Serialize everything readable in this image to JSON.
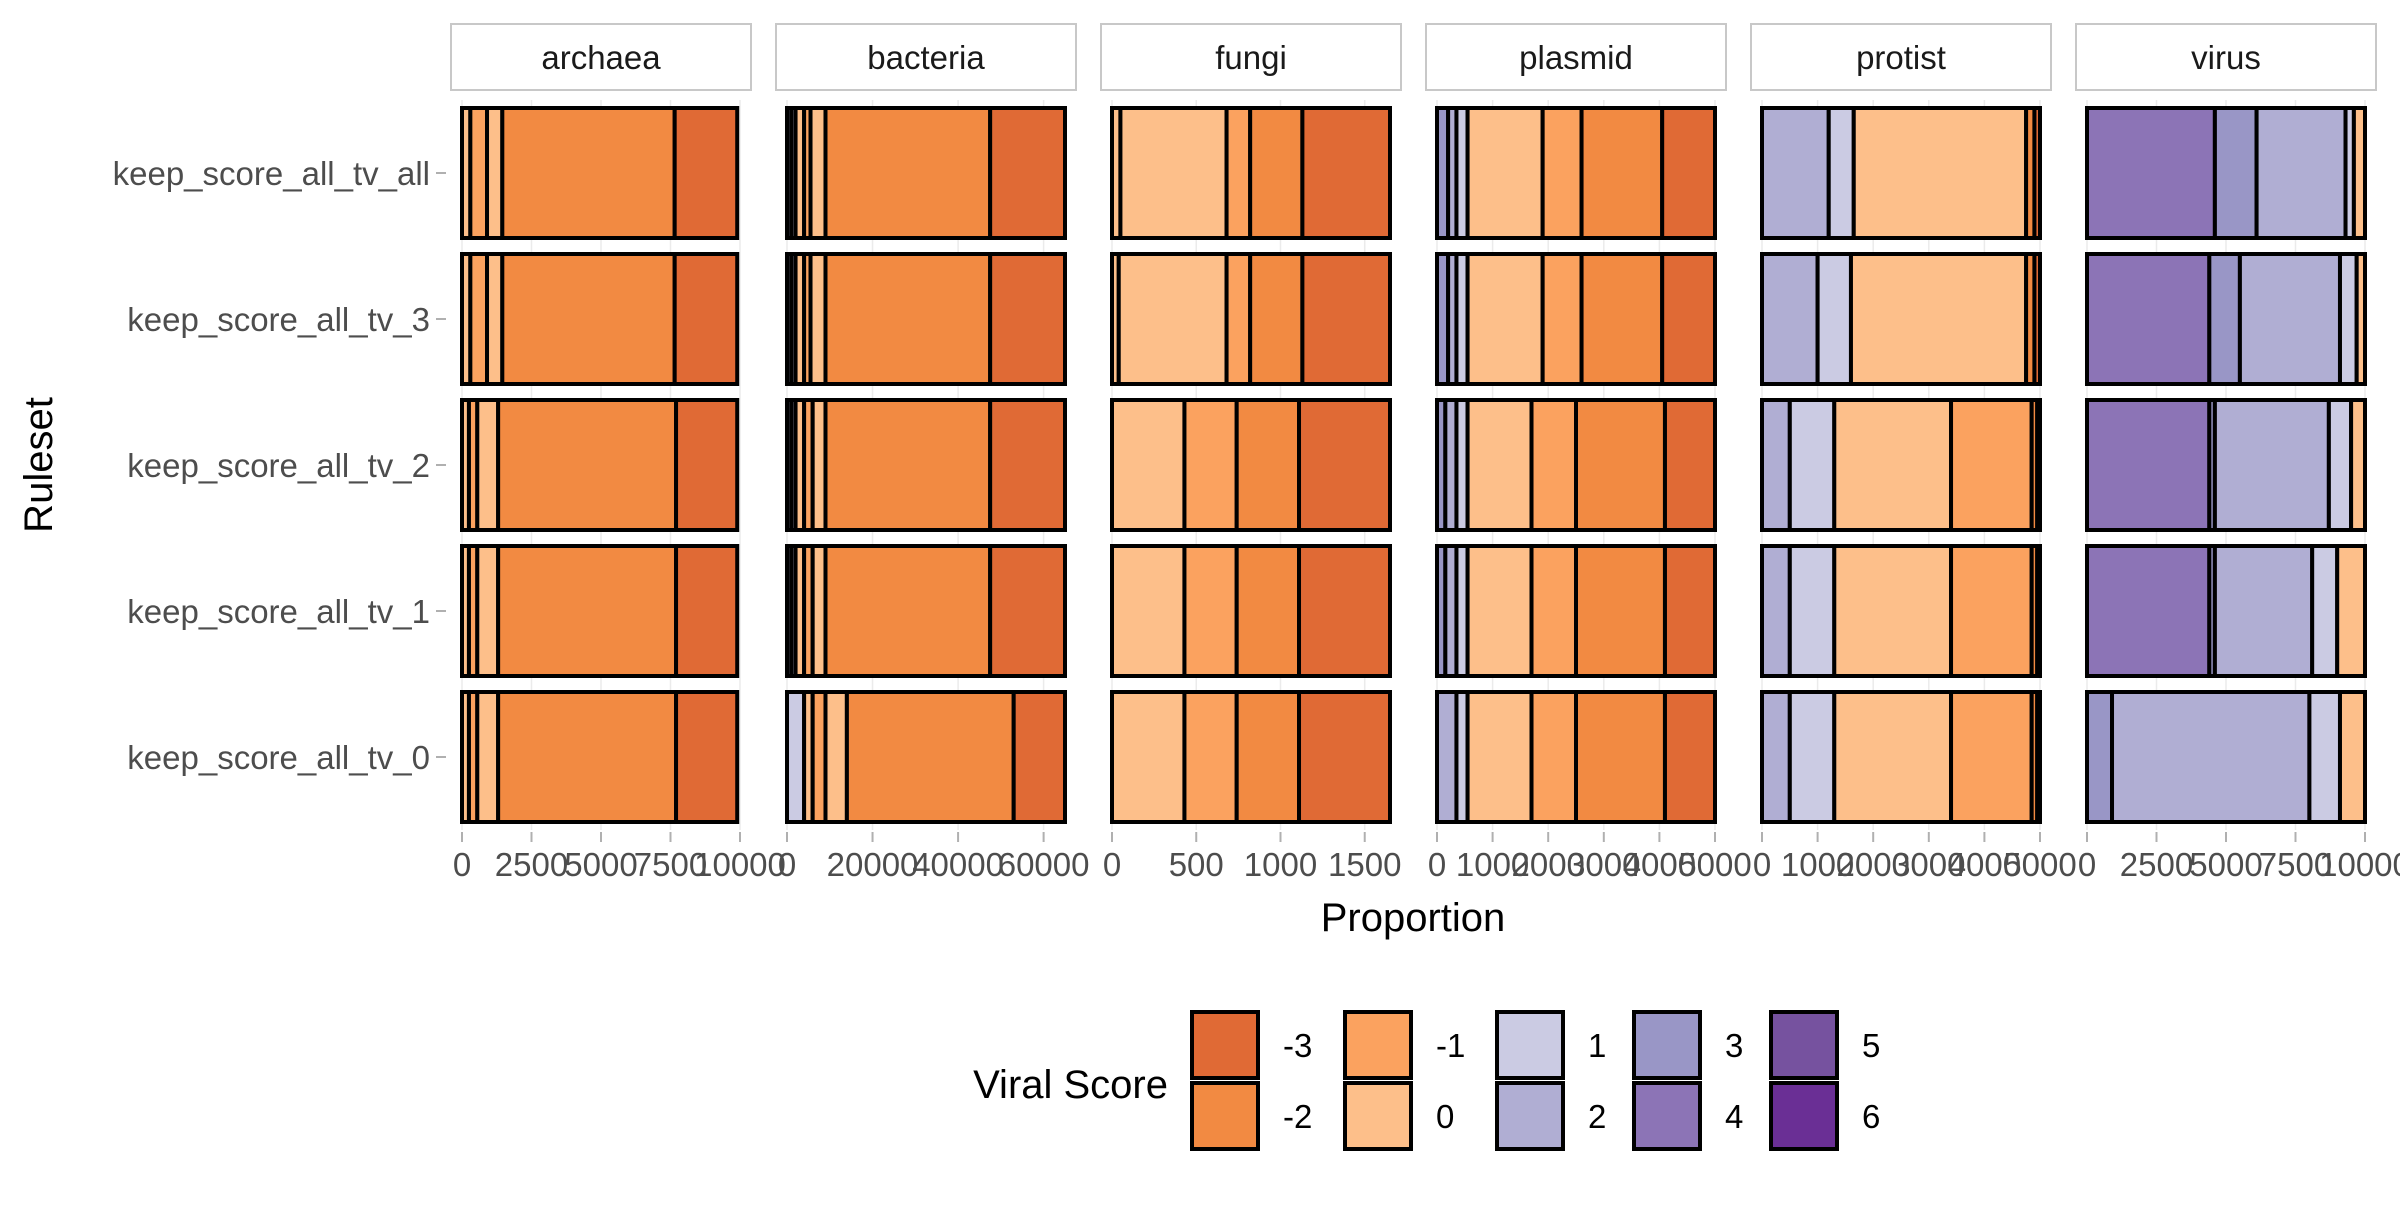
{
  "chart_data": {
    "type": "bar",
    "orientation": "horizontal",
    "stacked": true,
    "xlabel": "Proportion",
    "ylabel": "Ruleset",
    "legend": {
      "title": "Viral Score",
      "position": "bottom",
      "entries": [
        {
          "label": "-3",
          "color": "#E06A35"
        },
        {
          "label": "-2",
          "color": "#F28A42"
        },
        {
          "label": "-1",
          "color": "#FBA25F"
        },
        {
          "label": "0",
          "color": "#FDBF8A"
        },
        {
          "label": "1",
          "color": "#CBCBE3"
        },
        {
          "label": "2",
          "color": "#B0AED3"
        },
        {
          "label": "3",
          "color": "#9996C6"
        },
        {
          "label": "4",
          "color": "#8C74B6"
        },
        {
          "label": "5",
          "color": "#76529F"
        },
        {
          "label": "6",
          "color": "#6A2F95"
        }
      ]
    },
    "rulesets": [
      "keep_score_all_tv_all",
      "keep_score_all_tv_3",
      "keep_score_all_tv_2",
      "keep_score_all_tv_1",
      "keep_score_all_tv_0"
    ],
    "panels": [
      {
        "name": "archaea",
        "xlim": [
          0,
          10000
        ],
        "ticks": [
          "0",
          "2500",
          "5000",
          "7500",
          "10000"
        ],
        "tick_values": [
          0,
          2500,
          5000,
          7500,
          10000
        ],
        "bars": [
          [
            {
              "score": "0",
              "value": 300
            },
            {
              "score": "-1",
              "value": 600
            },
            {
              "score": "0",
              "value": 550
            },
            {
              "score": "-2",
              "value": 6200
            },
            {
              "score": "-3",
              "value": 2250
            }
          ],
          [
            {
              "score": "0",
              "value": 300
            },
            {
              "score": "-1",
              "value": 600
            },
            {
              "score": "0",
              "value": 550
            },
            {
              "score": "-2",
              "value": 6200
            },
            {
              "score": "-3",
              "value": 2250
            }
          ],
          [
            {
              "score": "0",
              "value": 250
            },
            {
              "score": "-1",
              "value": 300
            },
            {
              "score": "0",
              "value": 750
            },
            {
              "score": "-2",
              "value": 6400
            },
            {
              "score": "-3",
              "value": 2200
            }
          ],
          [
            {
              "score": "0",
              "value": 250
            },
            {
              "score": "-1",
              "value": 300
            },
            {
              "score": "0",
              "value": 750
            },
            {
              "score": "-2",
              "value": 6400
            },
            {
              "score": "-3",
              "value": 2200
            }
          ],
          [
            {
              "score": "0",
              "value": 250
            },
            {
              "score": "-1",
              "value": 300
            },
            {
              "score": "0",
              "value": 750
            },
            {
              "score": "-2",
              "value": 6400
            },
            {
              "score": "-3",
              "value": 2200
            }
          ]
        ]
      },
      {
        "name": "bacteria",
        "xlim": [
          0,
          65000
        ],
        "ticks": [
          "0",
          "20000",
          "40000",
          "60000"
        ],
        "tick_values": [
          0,
          20000,
          40000,
          60000
        ],
        "bars": [
          [
            {
              "score": "2",
              "value": 1000
            },
            {
              "score": "1",
              "value": 1000
            },
            {
              "score": "0",
              "value": 2000
            },
            {
              "score": "-1",
              "value": 1500
            },
            {
              "score": "0",
              "value": 3500
            },
            {
              "score": "-2",
              "value": 38500
            },
            {
              "score": "-3",
              "value": 17500
            }
          ],
          [
            {
              "score": "2",
              "value": 1000
            },
            {
              "score": "1",
              "value": 1000
            },
            {
              "score": "0",
              "value": 2000
            },
            {
              "score": "-1",
              "value": 1500
            },
            {
              "score": "0",
              "value": 3500
            },
            {
              "score": "-2",
              "value": 38500
            },
            {
              "score": "-3",
              "value": 17500
            }
          ],
          [
            {
              "score": "2",
              "value": 1000
            },
            {
              "score": "1",
              "value": 1000
            },
            {
              "score": "0",
              "value": 2000
            },
            {
              "score": "-1",
              "value": 2000
            },
            {
              "score": "0",
              "value": 3000
            },
            {
              "score": "-2",
              "value": 38500
            },
            {
              "score": "-3",
              "value": 17500
            }
          ],
          [
            {
              "score": "2",
              "value": 1000
            },
            {
              "score": "1",
              "value": 1000
            },
            {
              "score": "0",
              "value": 2000
            },
            {
              "score": "-1",
              "value": 2000
            },
            {
              "score": "0",
              "value": 3000
            },
            {
              "score": "-2",
              "value": 38500
            },
            {
              "score": "-3",
              "value": 17500
            }
          ],
          [
            {
              "score": "1",
              "value": 4000
            },
            {
              "score": "0",
              "value": 2000
            },
            {
              "score": "-1",
              "value": 3000
            },
            {
              "score": "0",
              "value": 5000
            },
            {
              "score": "-2",
              "value": 39000
            },
            {
              "score": "-3",
              "value": 12000
            }
          ]
        ]
      },
      {
        "name": "fungi",
        "xlim": [
          0,
          1650
        ],
        "ticks": [
          "0",
          "500",
          "1000",
          "1500"
        ],
        "tick_values": [
          0,
          500,
          1000,
          1500
        ],
        "bars": [
          [
            {
              "score": "0",
              "value": 50
            },
            {
              "score": "0",
              "value": 630
            },
            {
              "score": "-1",
              "value": 140
            },
            {
              "score": "-2",
              "value": 310
            },
            {
              "score": "-3",
              "value": 520
            }
          ],
          [
            {
              "score": "0",
              "value": 40
            },
            {
              "score": "0",
              "value": 640
            },
            {
              "score": "-1",
              "value": 140
            },
            {
              "score": "-2",
              "value": 310
            },
            {
              "score": "-3",
              "value": 520
            }
          ],
          [
            {
              "score": "0",
              "value": 430
            },
            {
              "score": "-1",
              "value": 310
            },
            {
              "score": "-2",
              "value": 370
            },
            {
              "score": "-3",
              "value": 540
            }
          ],
          [
            {
              "score": "0",
              "value": 430
            },
            {
              "score": "-1",
              "value": 310
            },
            {
              "score": "-2",
              "value": 370
            },
            {
              "score": "-3",
              "value": 540
            }
          ],
          [
            {
              "score": "0",
              "value": 430
            },
            {
              "score": "-1",
              "value": 310
            },
            {
              "score": "-2",
              "value": 370
            },
            {
              "score": "-3",
              "value": 540
            }
          ]
        ]
      },
      {
        "name": "plasmid",
        "xlim": [
          0,
          5000
        ],
        "ticks": [
          "0",
          "1000",
          "2000",
          "3000",
          "4000",
          "5000"
        ],
        "tick_values": [
          0,
          1000,
          2000,
          3000,
          4000,
          5000
        ],
        "bars": [
          [
            {
              "score": "3",
              "value": 200
            },
            {
              "score": "2",
              "value": 150
            },
            {
              "score": "1",
              "value": 200
            },
            {
              "score": "0",
              "value": 1350
            },
            {
              "score": "-1",
              "value": 700
            },
            {
              "score": "-2",
              "value": 1450
            },
            {
              "score": "-3",
              "value": 950
            }
          ],
          [
            {
              "score": "3",
              "value": 200
            },
            {
              "score": "2",
              "value": 150
            },
            {
              "score": "1",
              "value": 200
            },
            {
              "score": "0",
              "value": 1350
            },
            {
              "score": "-1",
              "value": 700
            },
            {
              "score": "-2",
              "value": 1450
            },
            {
              "score": "-3",
              "value": 950
            }
          ],
          [
            {
              "score": "3",
              "value": 150
            },
            {
              "score": "2",
              "value": 200
            },
            {
              "score": "1",
              "value": 200
            },
            {
              "score": "0",
              "value": 1150
            },
            {
              "score": "-1",
              "value": 800
            },
            {
              "score": "-2",
              "value": 1600
            },
            {
              "score": "-3",
              "value": 900
            }
          ],
          [
            {
              "score": "3",
              "value": 150
            },
            {
              "score": "2",
              "value": 200
            },
            {
              "score": "1",
              "value": 200
            },
            {
              "score": "0",
              "value": 1150
            },
            {
              "score": "-1",
              "value": 800
            },
            {
              "score": "-2",
              "value": 1600
            },
            {
              "score": "-3",
              "value": 900
            }
          ],
          [
            {
              "score": "2",
              "value": 350
            },
            {
              "score": "1",
              "value": 200
            },
            {
              "score": "0",
              "value": 1150
            },
            {
              "score": "-1",
              "value": 800
            },
            {
              "score": "-2",
              "value": 1600
            },
            {
              "score": "-3",
              "value": 900
            }
          ]
        ]
      },
      {
        "name": "protist",
        "xlim": [
          0,
          5000
        ],
        "ticks": [
          "0",
          "1000",
          "2000",
          "3000",
          "4000",
          "5000"
        ],
        "tick_values": [
          0,
          1000,
          2000,
          3000,
          4000,
          5000
        ],
        "bars": [
          [
            {
              "score": "2",
              "value": 1200
            },
            {
              "score": "1",
              "value": 450
            },
            {
              "score": "0",
              "value": 3100
            },
            {
              "score": "-2",
              "value": 150
            },
            {
              "score": "-3",
              "value": 100
            }
          ],
          [
            {
              "score": "2",
              "value": 1000
            },
            {
              "score": "1",
              "value": 600
            },
            {
              "score": "0",
              "value": 3150
            },
            {
              "score": "-2",
              "value": 150
            },
            {
              "score": "-3",
              "value": 100
            }
          ],
          [
            {
              "score": "2",
              "value": 500
            },
            {
              "score": "1",
              "value": 800
            },
            {
              "score": "0",
              "value": 2100
            },
            {
              "score": "-1",
              "value": 1450
            },
            {
              "score": "-2",
              "value": 100
            },
            {
              "score": "-3",
              "value": 50
            }
          ],
          [
            {
              "score": "2",
              "value": 500
            },
            {
              "score": "1",
              "value": 800
            },
            {
              "score": "0",
              "value": 2100
            },
            {
              "score": "-1",
              "value": 1450
            },
            {
              "score": "-2",
              "value": 100
            },
            {
              "score": "-3",
              "value": 50
            }
          ],
          [
            {
              "score": "2",
              "value": 500
            },
            {
              "score": "1",
              "value": 800
            },
            {
              "score": "0",
              "value": 2100
            },
            {
              "score": "-1",
              "value": 1450
            },
            {
              "score": "-2",
              "value": 100
            },
            {
              "score": "-3",
              "value": 50
            }
          ]
        ]
      },
      {
        "name": "virus",
        "xlim": [
          0,
          10000
        ],
        "ticks": [
          "0",
          "2500",
          "5000",
          "7500",
          "10000"
        ],
        "tick_values": [
          0,
          2500,
          5000,
          7500,
          10000
        ],
        "bars": [
          [
            {
              "score": "4",
              "value": 4600
            },
            {
              "score": "3",
              "value": 1500
            },
            {
              "score": "2",
              "value": 3200
            },
            {
              "score": "1",
              "value": 300
            },
            {
              "score": "0",
              "value": 400
            }
          ],
          [
            {
              "score": "4",
              "value": 4400
            },
            {
              "score": "3",
              "value": 1100
            },
            {
              "score": "2",
              "value": 3600
            },
            {
              "score": "1",
              "value": 600
            },
            {
              "score": "0",
              "value": 300
            }
          ],
          [
            {
              "score": "4",
              "value": 4400
            },
            {
              "score": "3",
              "value": 200
            },
            {
              "score": "2",
              "value": 4100
            },
            {
              "score": "1",
              "value": 800
            },
            {
              "score": "0",
              "value": 500
            }
          ],
          [
            {
              "score": "4",
              "value": 4400
            },
            {
              "score": "3",
              "value": 200
            },
            {
              "score": "2",
              "value": 3500
            },
            {
              "score": "1",
              "value": 900
            },
            {
              "score": "0",
              "value": 1000
            }
          ],
          [
            {
              "score": "3",
              "value": 900
            },
            {
              "score": "2",
              "value": 7100
            },
            {
              "score": "1",
              "value": 1100
            },
            {
              "score": "0",
              "value": 900
            }
          ]
        ]
      }
    ]
  }
}
